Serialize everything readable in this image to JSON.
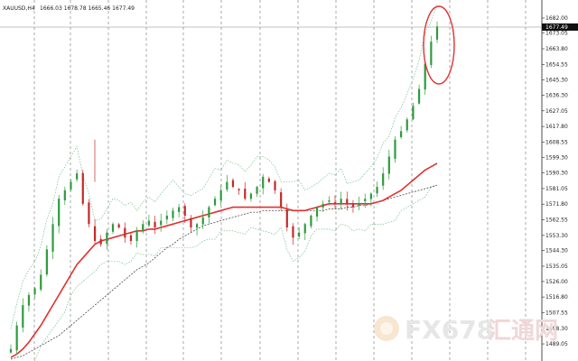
{
  "header": {
    "symbol": "XAUUSD,H4",
    "ohlc": "1666.03 1678.78 1665.46 1677.49"
  },
  "watermark": {
    "brand": "FX678",
    "brand_cn": "汇通网"
  },
  "colors": {
    "bull": "#2e9b3e",
    "bear": "#c62828",
    "ma_fast": "#e03030",
    "ma_slow": "#333333",
    "bands": "#5fb37a",
    "grid": "#555555",
    "circle": "#e03030"
  },
  "chart_data": {
    "type": "candlestick",
    "symbol": "XAUUSD",
    "timeframe": "H4",
    "ylim": [
      1480,
      1690
    ],
    "y_ticks": [
      1682.0,
      1673.05,
      1663.8,
      1654.55,
      1645.3,
      1636.3,
      1627.05,
      1617.8,
      1608.55,
      1599.3,
      1590.3,
      1581.05,
      1571.8,
      1562.55,
      1553.3,
      1544.3,
      1535.05,
      1526.0,
      1516.8,
      1507.55,
      1498.3,
      1489.05
    ],
    "current_price": "1677.49",
    "close_path": [
      1486,
      1500,
      1512,
      1518,
      1522,
      1530,
      1545,
      1560,
      1575,
      1580,
      1585,
      1590,
      1572,
      1560,
      1550,
      1548,
      1555,
      1560,
      1558,
      1552,
      1550,
      1556,
      1560,
      1562,
      1558,
      1562,
      1565,
      1568,
      1570,
      1565,
      1558,
      1560,
      1564,
      1570,
      1575,
      1580,
      1585,
      1582,
      1580,
      1575,
      1578,
      1582,
      1588,
      1585,
      1580,
      1570,
      1558,
      1552,
      1555,
      1560,
      1565,
      1570,
      1572,
      1574,
      1572,
      1575,
      1572,
      1570,
      1572,
      1575,
      1578,
      1582,
      1590,
      1600,
      1610,
      1615,
      1622,
      1630,
      1640,
      1655,
      1668,
      1677
    ],
    "ma_fast": [
      1481,
      1483,
      1486,
      1490,
      1495,
      1500,
      1506,
      1512,
      1518,
      1524,
      1530,
      1536,
      1540,
      1544,
      1548,
      1550,
      1551,
      1552,
      1553,
      1554,
      1555,
      1556,
      1556,
      1557,
      1557,
      1558,
      1559,
      1560,
      1561,
      1562,
      1563,
      1564,
      1565,
      1566,
      1567,
      1568,
      1569,
      1570,
      1570,
      1570,
      1570,
      1570,
      1570,
      1570,
      1570,
      1570,
      1569,
      1568,
      1568,
      1568,
      1569,
      1570,
      1571,
      1572,
      1572,
      1572,
      1572,
      1572,
      1572,
      1572,
      1572,
      1573,
      1574,
      1576,
      1578,
      1580,
      1583,
      1586,
      1589,
      1592,
      1594,
      1596
    ],
    "ma_slow": [
      1480,
      1481,
      1482,
      1484,
      1486,
      1488,
      1490,
      1492,
      1494,
      1497,
      1500,
      1503,
      1506,
      1509,
      1512,
      1515,
      1518,
      1521,
      1524,
      1527,
      1530,
      1533,
      1535,
      1537,
      1540,
      1543,
      1546,
      1548,
      1551,
      1553,
      1555,
      1557,
      1559,
      1560,
      1561,
      1562,
      1563,
      1564,
      1565,
      1566,
      1567,
      1567,
      1568,
      1568,
      1568,
      1568,
      1568,
      1568,
      1568,
      1568,
      1568,
      1568,
      1568,
      1569,
      1569,
      1569,
      1570,
      1570,
      1571,
      1571,
      1572,
      1573,
      1574,
      1575,
      1576,
      1577,
      1578,
      1579,
      1580,
      1581,
      1582,
      1583
    ]
  }
}
